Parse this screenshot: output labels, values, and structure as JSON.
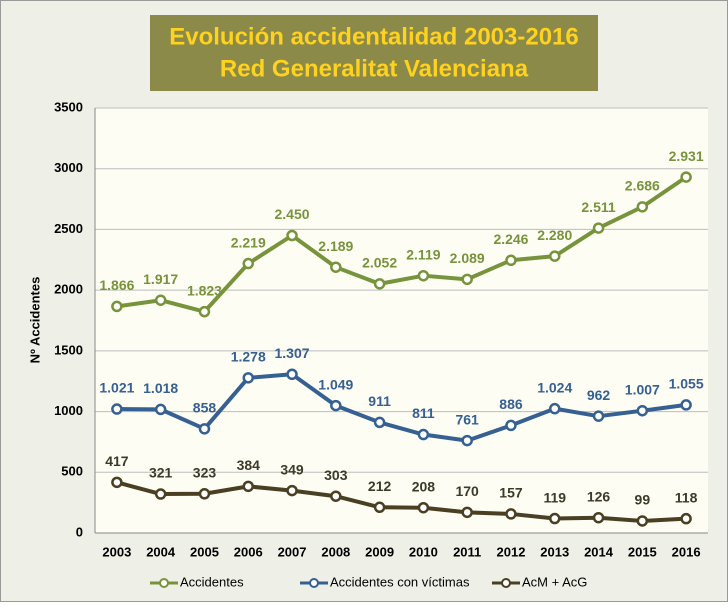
{
  "chart_data": {
    "type": "line",
    "title": "Evolución accidentalidad 2003-2016",
    "subtitle": "Red Generalitat Valenciana",
    "ylabel": "Nº Accidentes",
    "categories": [
      "2003",
      "2004",
      "2005",
      "2006",
      "2007",
      "2008",
      "2009",
      "2010",
      "2011",
      "2012",
      "2013",
      "2014",
      "2015",
      "2016"
    ],
    "ylim": [
      0,
      3500
    ],
    "yticks": [
      0,
      500,
      1000,
      1500,
      2000,
      2500,
      3000,
      3500
    ],
    "grid": true,
    "legend": "bottom",
    "series": [
      {
        "name": "Accidentes",
        "color": "#77933c",
        "values": [
          1866,
          1917,
          1823,
          2219,
          2450,
          2189,
          2052,
          2119,
          2089,
          2246,
          2280,
          2511,
          2686,
          2931
        ],
        "value_labels": [
          "1.866",
          "1.917",
          "1.823",
          "2.219",
          "2.450",
          "2.189",
          "2.052",
          "2.119",
          "2.089",
          "2.246",
          "2.280",
          "2.511",
          "2.686",
          "2.931"
        ]
      },
      {
        "name": "Accidentes con víctimas",
        "color": "#376092",
        "values": [
          1021,
          1018,
          858,
          1278,
          1307,
          1049,
          911,
          811,
          761,
          886,
          1024,
          962,
          1007,
          1055
        ],
        "value_labels": [
          "1.021",
          "1.018",
          "858",
          "1.278",
          "1.307",
          "1.049",
          "911",
          "811",
          "761",
          "886",
          "1.024",
          "962",
          "1.007",
          "1.055"
        ]
      },
      {
        "name": "AcM + AcG",
        "color": "#4a3f22",
        "values": [
          417,
          321,
          323,
          384,
          349,
          303,
          212,
          208,
          170,
          157,
          119,
          126,
          99,
          118
        ]
      }
    ]
  }
}
